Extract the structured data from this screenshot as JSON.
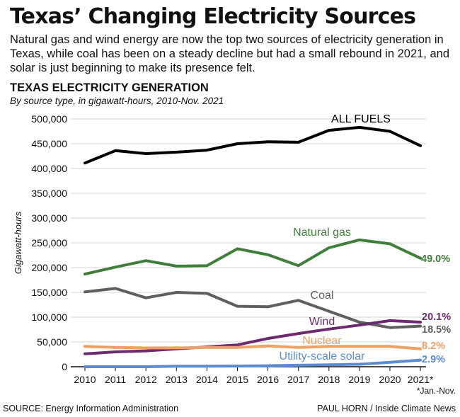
{
  "title": "Texas’ Changing Electricity Sources",
  "subtitle": "Natural gas and wind energy are now the top two sources of electricity generation in Texas, while coal has been on a steady decline but had a small rebound in 2021, and solar is just beginning to make its presence felt.",
  "footnote": "*Jan.-Nov.",
  "source": "SOURCE: Energy Information Administration",
  "credit": "PAUL HORN / Inside Climate News",
  "chart_data": {
    "type": "line",
    "title": "TEXAS ELECTRICITY GENERATION",
    "subtitle": "By source type, in gigawatt-hours, 2010-Nov. 2021",
    "ylabel": "Gigawatt-hours",
    "xlabel": "",
    "ylim": [
      0,
      500000
    ],
    "yticks": [
      0,
      50000,
      100000,
      150000,
      200000,
      250000,
      300000,
      350000,
      400000,
      450000,
      500000
    ],
    "ytick_labels": [
      "0",
      "50,000",
      "100,000",
      "150,000",
      "200,000",
      "250,000",
      "300,000",
      "350,000",
      "400,000",
      "450,000",
      "500,000"
    ],
    "categories": [
      "2010",
      "2011",
      "2012",
      "2013",
      "2014",
      "2015",
      "2016",
      "2017",
      "2018",
      "2019",
      "2020",
      "2021*"
    ],
    "grid": true,
    "series": [
      {
        "name": "ALL FUELS",
        "color": "#000000",
        "end_label": "",
        "values": [
          411000,
          436000,
          430000,
          433000,
          437000,
          450000,
          454000,
          453000,
          477000,
          483000,
          475000,
          446000
        ]
      },
      {
        "name": "Natural gas",
        "color": "#3f7f3a",
        "end_label": "49.0%",
        "values": [
          187000,
          201000,
          214000,
          203000,
          204000,
          238000,
          226000,
          204000,
          240000,
          256000,
          248000,
          219000
        ]
      },
      {
        "name": "Coal",
        "color": "#5f5f5f",
        "end_label": "18.5%",
        "values": [
          151000,
          158000,
          139000,
          150000,
          148000,
          122000,
          121000,
          134000,
          112000,
          90000,
          79000,
          82000
        ]
      },
      {
        "name": "Wind",
        "color": "#6e2a6e",
        "end_label": "20.1%",
        "values": [
          26000,
          30000,
          32000,
          36000,
          40000,
          44000,
          57000,
          67000,
          76000,
          84000,
          93000,
          90000
        ]
      },
      {
        "name": "Nuclear",
        "color": "#f0a060",
        "end_label": "8.2%",
        "values": [
          41000,
          39000,
          38000,
          38000,
          39000,
          39000,
          42000,
          39000,
          41000,
          41000,
          41000,
          36000
        ]
      },
      {
        "name": "Utility-scale solar",
        "color": "#5b8ccf",
        "end_label": "2.9%",
        "values": [
          0,
          0,
          0,
          1000,
          1000,
          1500,
          2000,
          3000,
          4000,
          5000,
          9000,
          13500
        ]
      }
    ]
  }
}
